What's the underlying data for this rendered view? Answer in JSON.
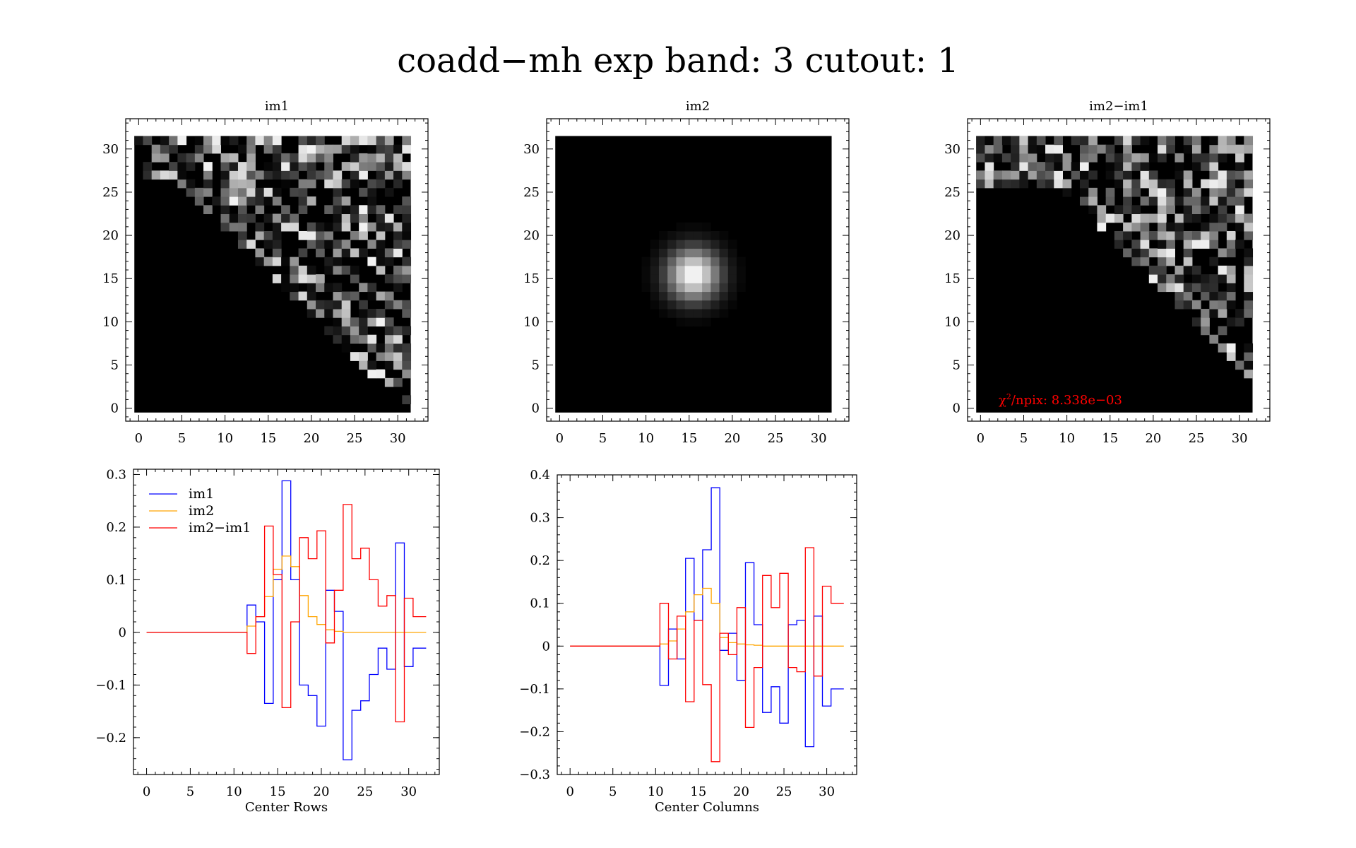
{
  "figure": {
    "title": "coadd−mh exp band: 3 cutout: 1"
  },
  "chart_data": [
    {
      "type": "heatmap",
      "title": "im1",
      "xlim": [
        -1.5,
        33.5
      ],
      "ylim": [
        -1.5,
        33.5
      ],
      "xticks": [
        0,
        5,
        10,
        15,
        20,
        25,
        30
      ],
      "yticks": [
        0,
        5,
        10,
        15,
        20,
        25,
        30
      ],
      "grid_size": 32,
      "colormap": "gray",
      "description_pattern": "sparse noise in upper-right region above a diagonal boundary"
    },
    {
      "type": "heatmap",
      "title": "im2",
      "xlim": [
        -1.5,
        33.5
      ],
      "ylim": [
        -1.5,
        33.5
      ],
      "xticks": [
        0,
        5,
        10,
        15,
        20,
        25,
        30
      ],
      "yticks": [
        0,
        5,
        10,
        15,
        20,
        25,
        30
      ],
      "grid_size": 32,
      "colormap": "gray",
      "model": {
        "kind": "gaussian",
        "center": [
          16,
          16
        ],
        "sigma": 2.1
      }
    },
    {
      "type": "heatmap",
      "title": "im2−im1",
      "xlim": [
        -1.5,
        33.5
      ],
      "ylim": [
        -1.5,
        33.5
      ],
      "xticks": [
        0,
        5,
        10,
        15,
        20,
        25,
        30
      ],
      "yticks": [
        0,
        5,
        10,
        15,
        20,
        25,
        30
      ],
      "grid_size": 32,
      "colormap": "gray",
      "annotation": {
        "prefix": "χ",
        "superscript": "2",
        "suffix": "/npix: 8.338e−03",
        "color": "#ff0000"
      }
    },
    {
      "type": "line",
      "step": true,
      "xlabel": "Center Rows",
      "xlim": [
        -1.5,
        33.5
      ],
      "ylim": [
        -0.27,
        0.31
      ],
      "xticks": [
        0,
        5,
        10,
        15,
        20,
        25,
        30
      ],
      "yticks": [
        -0.2,
        -0.1,
        0,
        0.1,
        0.2,
        0.3
      ],
      "ytick_labels": [
        "−0.2",
        "−0.1",
        "0",
        "0.1",
        "0.2",
        "0.3"
      ],
      "legend": "top-left",
      "x": [
        0,
        1,
        2,
        3,
        4,
        5,
        6,
        7,
        8,
        9,
        10,
        11,
        12,
        13,
        14,
        15,
        16,
        17,
        18,
        19,
        20,
        21,
        22,
        23,
        24,
        25,
        26,
        27,
        28,
        29,
        30,
        31,
        32
      ],
      "series": [
        {
          "name": "im1",
          "color": "#0000ff",
          "values": [
            0,
            0,
            0,
            0,
            0,
            0,
            0,
            0,
            0,
            0,
            0,
            0,
            0.052,
            0.02,
            -0.135,
            0.1,
            0.288,
            0.1,
            -0.1,
            -0.12,
            -0.178,
            0.08,
            0.04,
            -0.242,
            -0.148,
            -0.13,
            -0.08,
            -0.03,
            -0.07,
            0.17,
            -0.065,
            -0.03,
            -0.03
          ]
        },
        {
          "name": "im2",
          "color": "#ffa500",
          "values": [
            0,
            0,
            0,
            0,
            0,
            0,
            0,
            0,
            0,
            0,
            0,
            0,
            0.012,
            0.03,
            0.068,
            0.12,
            0.145,
            0.125,
            0.07,
            0.03,
            0.015,
            0.005,
            0.002,
            0,
            0,
            0,
            0,
            0,
            0,
            0,
            0,
            0,
            0
          ]
        },
        {
          "name": "im2−im1",
          "color": "#ff0000",
          "values": [
            0,
            0,
            0,
            0,
            0,
            0,
            0,
            0,
            0,
            0,
            0,
            0,
            -0.04,
            0.03,
            0.202,
            0.11,
            -0.143,
            0.02,
            0.18,
            0.14,
            0.193,
            -0.02,
            0.08,
            0.243,
            0.14,
            0.16,
            0.1,
            0.05,
            0.07,
            -0.17,
            0.065,
            0.03,
            0.03
          ]
        }
      ]
    },
    {
      "type": "line",
      "step": true,
      "xlabel": "Center Columns",
      "xlim": [
        -1.5,
        33.5
      ],
      "ylim": [
        -0.3,
        0.4
      ],
      "xticks": [
        0,
        5,
        10,
        15,
        20,
        25,
        30
      ],
      "yticks": [
        -0.3,
        -0.2,
        -0.1,
        0,
        0.1,
        0.2,
        0.3,
        0.4
      ],
      "ytick_labels": [
        "−0.3",
        "−0.2",
        "−0.1",
        "0",
        "0.1",
        "0.2",
        "0.3",
        "0.4"
      ],
      "x": [
        0,
        1,
        2,
        3,
        4,
        5,
        6,
        7,
        8,
        9,
        10,
        11,
        12,
        13,
        14,
        15,
        16,
        17,
        18,
        19,
        20,
        21,
        22,
        23,
        24,
        25,
        26,
        27,
        28,
        29,
        30,
        31,
        32
      ],
      "series": [
        {
          "name": "im1",
          "color": "#0000ff",
          "values": [
            0,
            0,
            0,
            0,
            0,
            0,
            0,
            0,
            0,
            0,
            0,
            -0.092,
            0.04,
            -0.03,
            0.205,
            0.06,
            0.225,
            0.37,
            -0.01,
            0.03,
            -0.08,
            0.195,
            0.05,
            -0.155,
            -0.095,
            -0.18,
            0.05,
            0.06,
            -0.235,
            0.07,
            -0.14,
            -0.1,
            -0.1
          ]
        },
        {
          "name": "im2",
          "color": "#ffa500",
          "values": [
            0,
            0,
            0,
            0,
            0,
            0,
            0,
            0,
            0,
            0,
            0,
            0.005,
            0.012,
            0.04,
            0.08,
            0.12,
            0.135,
            0.1,
            0.02,
            0.008,
            0.005,
            0.003,
            0.002,
            0,
            0,
            0,
            0,
            0,
            0,
            0,
            0,
            0,
            0
          ]
        },
        {
          "name": "im2−im1",
          "color": "#ff0000",
          "values": [
            0,
            0,
            0,
            0,
            0,
            0,
            0,
            0,
            0,
            0,
            0,
            0.1,
            -0.03,
            0.07,
            -0.13,
            0.06,
            -0.09,
            -0.27,
            0.03,
            -0.02,
            0.09,
            -0.19,
            -0.05,
            0.165,
            0.09,
            0.17,
            -0.05,
            -0.06,
            0.23,
            -0.07,
            0.14,
            0.1,
            0.1
          ]
        }
      ]
    }
  ]
}
